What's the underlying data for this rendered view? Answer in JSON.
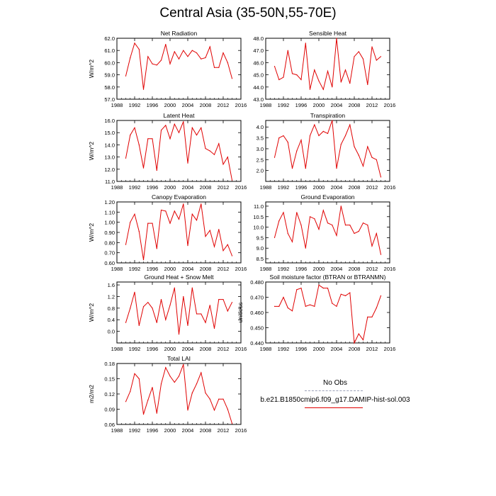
{
  "figure": {
    "title": "Central Asia (35-50N,55-70E)"
  },
  "legend": {
    "items": [
      {
        "label": "No Obs",
        "color": "#9aa0b8",
        "style": "dashed"
      },
      {
        "label": "b.e21.B1850cmip6.f09_g17.DAMIP-hist-sol.003",
        "color": "#e00000",
        "style": "solid"
      }
    ]
  },
  "colors": {
    "series": "#e00000",
    "axis": "#000000"
  },
  "chart_data": [
    {
      "type": "line",
      "title": "Net Radiation",
      "ylabel": "W/m^2",
      "xlim": [
        1988,
        2016
      ],
      "xticks": [
        1988,
        1992,
        1996,
        2000,
        2004,
        2008,
        2012,
        2016
      ],
      "ylim": [
        57.0,
        62.0
      ],
      "yticks": [
        "57.0",
        "58.0",
        "59.0",
        "60.0",
        "61.0",
        "62.0"
      ],
      "x": [
        1990,
        1991,
        1992,
        1993,
        1994,
        1995,
        1996,
        1997,
        1998,
        1999,
        2000,
        2001,
        2002,
        2003,
        2004,
        2005,
        2006,
        2007,
        2008,
        2009,
        2010,
        2011,
        2012,
        2013,
        2014
      ],
      "values": [
        58.9,
        60.4,
        61.6,
        61.1,
        57.8,
        60.5,
        59.9,
        59.8,
        60.2,
        61.5,
        59.9,
        60.9,
        60.3,
        61.0,
        60.5,
        61.0,
        60.8,
        60.3,
        60.4,
        61.3,
        59.6,
        59.6,
        60.8,
        60.0,
        58.7
      ],
      "grid": false
    },
    {
      "type": "line",
      "title": "Sensible Heat",
      "ylabel": "",
      "xlim": [
        1988,
        2016
      ],
      "xticks": [
        1988,
        1992,
        1996,
        2000,
        2004,
        2008,
        2012,
        2016
      ],
      "ylim": [
        43.0,
        48.0
      ],
      "yticks": [
        "43.0",
        "44.0",
        "45.0",
        "46.0",
        "47.0",
        "48.0"
      ],
      "x": [
        1990,
        1991,
        1992,
        1993,
        1994,
        1995,
        1996,
        1997,
        1998,
        1999,
        2000,
        2001,
        2002,
        2003,
        2004,
        2005,
        2006,
        2007,
        2008,
        2009,
        2010,
        2011,
        2012,
        2013,
        2014
      ],
      "values": [
        45.7,
        44.6,
        44.8,
        47.0,
        45.1,
        45.0,
        44.6,
        47.6,
        43.8,
        45.4,
        44.5,
        43.8,
        45.3,
        44.0,
        48.0,
        44.4,
        45.4,
        44.3,
        46.5,
        46.9,
        46.3,
        44.2,
        47.3,
        46.2,
        46.5
      ],
      "grid": false
    },
    {
      "type": "line",
      "title": "Latent Heat",
      "ylabel": "W/m^2",
      "xlim": [
        1988,
        2016
      ],
      "xticks": [
        1988,
        1992,
        1996,
        2000,
        2004,
        2008,
        2012,
        2016
      ],
      "ylim": [
        11.0,
        16.0
      ],
      "yticks": [
        "11.0",
        "12.0",
        "13.0",
        "14.0",
        "15.0",
        "16.0"
      ],
      "x": [
        1990,
        1991,
        1992,
        1993,
        1994,
        1995,
        1996,
        1997,
        1998,
        1999,
        2000,
        2001,
        2002,
        2003,
        2004,
        2005,
        2006,
        2007,
        2008,
        2009,
        2010,
        2011,
        2012,
        2013,
        2014
      ],
      "values": [
        12.9,
        14.8,
        15.4,
        14.0,
        12.1,
        14.5,
        14.5,
        11.9,
        15.2,
        15.6,
        14.5,
        15.7,
        15.0,
        15.9,
        12.5,
        15.4,
        14.8,
        15.4,
        13.7,
        13.5,
        13.2,
        14.1,
        12.4,
        13.0,
        11.1
      ],
      "grid": false
    },
    {
      "type": "line",
      "title": "Transpiration",
      "ylabel": "",
      "xlim": [
        1988,
        2016
      ],
      "xticks": [
        1988,
        1992,
        1996,
        2000,
        2004,
        2008,
        2012,
        2016
      ],
      "ylim": [
        1.5,
        4.3
      ],
      "yticks": [
        "2.0",
        "2.5",
        "3.0",
        "3.5",
        "4.0"
      ],
      "ytick_values": [
        2.0,
        2.5,
        3.0,
        3.5,
        4.0
      ],
      "x": [
        1990,
        1991,
        1992,
        1993,
        1994,
        1995,
        1996,
        1997,
        1998,
        1999,
        2000,
        2001,
        2002,
        2003,
        2004,
        2005,
        2006,
        2007,
        2008,
        2009,
        2010,
        2011,
        2012,
        2013,
        2014
      ],
      "values": [
        2.6,
        3.5,
        3.6,
        3.3,
        2.1,
        2.9,
        3.4,
        2.1,
        3.6,
        4.1,
        3.6,
        3.8,
        3.7,
        4.3,
        2.1,
        3.2,
        3.6,
        4.1,
        3.1,
        2.7,
        2.2,
        3.1,
        2.6,
        2.5,
        1.7
      ],
      "grid": false
    },
    {
      "type": "line",
      "title": "Canopy Evaporation",
      "ylabel": "W/m^2",
      "xlim": [
        1988,
        2016
      ],
      "xticks": [
        1988,
        1992,
        1996,
        2000,
        2004,
        2008,
        2012,
        2016
      ],
      "ylim": [
        0.6,
        1.2
      ],
      "yticks": [
        "0.60",
        "0.70",
        "0.80",
        "0.90",
        "1.00",
        "1.10",
        "1.20"
      ],
      "x": [
        1990,
        1991,
        1992,
        1993,
        1994,
        1995,
        1996,
        1997,
        1998,
        1999,
        2000,
        2001,
        2002,
        2003,
        2004,
        2005,
        2006,
        2007,
        2008,
        2009,
        2010,
        2011,
        2012,
        2013,
        2014
      ],
      "values": [
        0.78,
        1.0,
        1.08,
        0.91,
        0.63,
        0.99,
        0.99,
        0.74,
        1.12,
        1.11,
        0.99,
        1.11,
        1.03,
        1.18,
        0.77,
        1.08,
        1.02,
        1.18,
        0.86,
        0.92,
        0.76,
        0.93,
        0.72,
        0.78,
        0.67
      ],
      "grid": false
    },
    {
      "type": "line",
      "title": "Ground Evaporation",
      "ylabel": "",
      "xlim": [
        1988,
        2016
      ],
      "xticks": [
        1988,
        1992,
        1996,
        2000,
        2004,
        2008,
        2012,
        2016
      ],
      "ylim": [
        8.3,
        11.2
      ],
      "yticks": [
        "8.5",
        "9.0",
        "9.5",
        "10.0",
        "10.5",
        "11.0"
      ],
      "ytick_values": [
        8.5,
        9.0,
        9.5,
        10.0,
        10.5,
        11.0
      ],
      "x": [
        1990,
        1991,
        1992,
        1993,
        1994,
        1995,
        1996,
        1997,
        1998,
        1999,
        2000,
        2001,
        2002,
        2003,
        2004,
        2005,
        2006,
        2007,
        2008,
        2009,
        2010,
        2011,
        2012,
        2013,
        2014
      ],
      "values": [
        9.5,
        10.3,
        10.7,
        9.7,
        9.3,
        10.7,
        10.1,
        9.0,
        10.5,
        10.4,
        9.9,
        10.8,
        10.2,
        10.1,
        9.6,
        11.0,
        10.1,
        10.1,
        9.7,
        9.8,
        10.2,
        10.1,
        9.1,
        9.7,
        8.7
      ],
      "grid": false
    },
    {
      "type": "line",
      "title": "Ground Heat + Snow Melt",
      "ylabel": "W/m^2",
      "xlim": [
        1988,
        2016
      ],
      "xticks": [
        1988,
        1992,
        1996,
        2000,
        2004,
        2008,
        2012,
        2016
      ],
      "ylim": [
        -0.4,
        1.7
      ],
      "yticks": [
        "0.0",
        "0.4",
        "0.8",
        "1.2",
        "1.6"
      ],
      "ytick_values": [
        0.0,
        0.4,
        0.8,
        1.2,
        1.6
      ],
      "x": [
        1990,
        1991,
        1992,
        1993,
        1994,
        1995,
        1996,
        1997,
        1998,
        1999,
        2000,
        2001,
        2002,
        2003,
        2004,
        2005,
        2006,
        2007,
        2008,
        2009,
        2010,
        2011,
        2012,
        2013,
        2014
      ],
      "values": [
        0.3,
        0.8,
        1.35,
        0.2,
        0.85,
        1.0,
        0.8,
        0.3,
        1.1,
        0.4,
        0.9,
        1.5,
        -0.1,
        1.2,
        0.2,
        1.5,
        0.6,
        0.6,
        0.3,
        0.9,
        0.1,
        1.1,
        1.1,
        0.7,
        1.0
      ],
      "grid": false
    },
    {
      "type": "line",
      "title": "Soil moisture factor (BTRAN or BTRANMN)",
      "ylabel": "unitless",
      "xlim": [
        1988,
        2016
      ],
      "xticks": [
        1988,
        1992,
        1996,
        2000,
        2004,
        2008,
        2012,
        2016
      ],
      "ylim": [
        0.44,
        0.48
      ],
      "yticks": [
        "0.440",
        "0.450",
        "0.460",
        "0.470",
        "0.480"
      ],
      "x": [
        1990,
        1991,
        1992,
        1993,
        1994,
        1995,
        1996,
        1997,
        1998,
        1999,
        2000,
        2001,
        2002,
        2003,
        2004,
        2005,
        2006,
        2007,
        2008,
        2009,
        2010,
        2011,
        2012,
        2013,
        2014
      ],
      "values": [
        0.464,
        0.464,
        0.47,
        0.463,
        0.461,
        0.475,
        0.476,
        0.464,
        0.465,
        0.464,
        0.478,
        0.476,
        0.476,
        0.466,
        0.464,
        0.472,
        0.471,
        0.473,
        0.44,
        0.446,
        0.442,
        0.457,
        0.457,
        0.463,
        0.471
      ],
      "grid": false
    },
    {
      "type": "line",
      "title": "Total LAI",
      "ylabel": "m2/m2",
      "xlim": [
        1988,
        2016
      ],
      "xticks": [
        1988,
        1992,
        1996,
        2000,
        2004,
        2008,
        2012,
        2016
      ],
      "ylim": [
        0.06,
        0.18
      ],
      "yticks": [
        "0.06",
        "0.09",
        "0.12",
        "0.15",
        "0.18"
      ],
      "x": [
        1990,
        1991,
        1992,
        1993,
        1994,
        1995,
        1996,
        1997,
        1998,
        1999,
        2000,
        2001,
        2002,
        2003,
        2004,
        2005,
        2006,
        2007,
        2008,
        2009,
        2010,
        2011,
        2012,
        2013,
        2014
      ],
      "values": [
        0.105,
        0.125,
        0.16,
        0.15,
        0.08,
        0.108,
        0.133,
        0.082,
        0.14,
        0.172,
        0.155,
        0.143,
        0.155,
        0.178,
        0.088,
        0.122,
        0.14,
        0.162,
        0.122,
        0.11,
        0.088,
        0.11,
        0.11,
        0.09,
        0.062
      ],
      "grid": false
    }
  ]
}
